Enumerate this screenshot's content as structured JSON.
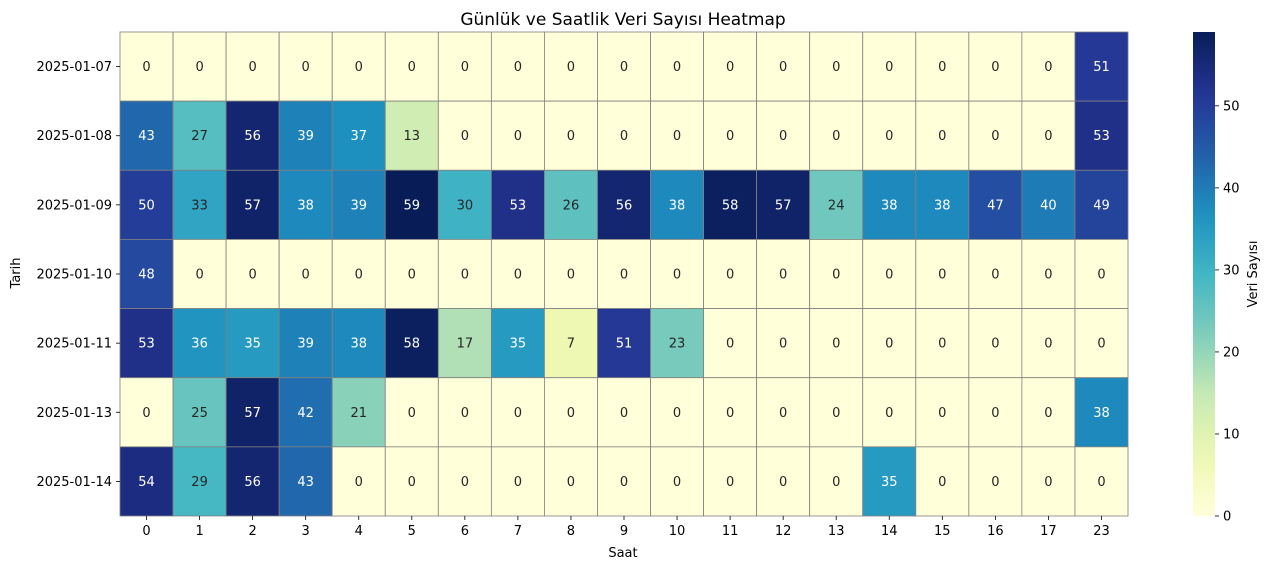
{
  "chart_data": {
    "type": "heatmap",
    "title": "Günlük ve Saatlik Veri Sayısı Heatmap",
    "xlabel": "Saat",
    "ylabel": "Tarih",
    "colorbar_label": "Veri Sayısı",
    "colormap": "YlGnBu",
    "vmin": 0,
    "vmax": 59,
    "colorbar_ticks": [
      0,
      10,
      20,
      30,
      40,
      50
    ],
    "cell_border_color": "#808080",
    "annotated": true,
    "x": [
      "0",
      "1",
      "2",
      "3",
      "4",
      "5",
      "6",
      "7",
      "8",
      "9",
      "10",
      "11",
      "12",
      "13",
      "14",
      "15",
      "16",
      "17",
      "23"
    ],
    "y": [
      "2025-01-07",
      "2025-01-08",
      "2025-01-09",
      "2025-01-10",
      "2025-01-11",
      "2025-01-13",
      "2025-01-14"
    ],
    "values": [
      [
        0,
        0,
        0,
        0,
        0,
        0,
        0,
        0,
        0,
        0,
        0,
        0,
        0,
        0,
        0,
        0,
        0,
        0,
        51
      ],
      [
        43,
        27,
        56,
        39,
        37,
        13,
        0,
        0,
        0,
        0,
        0,
        0,
        0,
        0,
        0,
        0,
        0,
        0,
        53
      ],
      [
        50,
        33,
        57,
        38,
        39,
        59,
        30,
        53,
        26,
        56,
        38,
        58,
        57,
        24,
        38,
        38,
        47,
        40,
        49
      ],
      [
        48,
        0,
        0,
        0,
        0,
        0,
        0,
        0,
        0,
        0,
        0,
        0,
        0,
        0,
        0,
        0,
        0,
        0,
        0
      ],
      [
        53,
        36,
        35,
        39,
        38,
        58,
        17,
        35,
        7,
        51,
        23,
        0,
        0,
        0,
        0,
        0,
        0,
        0,
        0
      ],
      [
        0,
        25,
        57,
        42,
        21,
        0,
        0,
        0,
        0,
        0,
        0,
        0,
        0,
        0,
        0,
        0,
        0,
        0,
        38
      ],
      [
        54,
        29,
        56,
        43,
        0,
        0,
        0,
        0,
        0,
        0,
        0,
        0,
        0,
        0,
        35,
        0,
        0,
        0,
        0
      ]
    ]
  }
}
